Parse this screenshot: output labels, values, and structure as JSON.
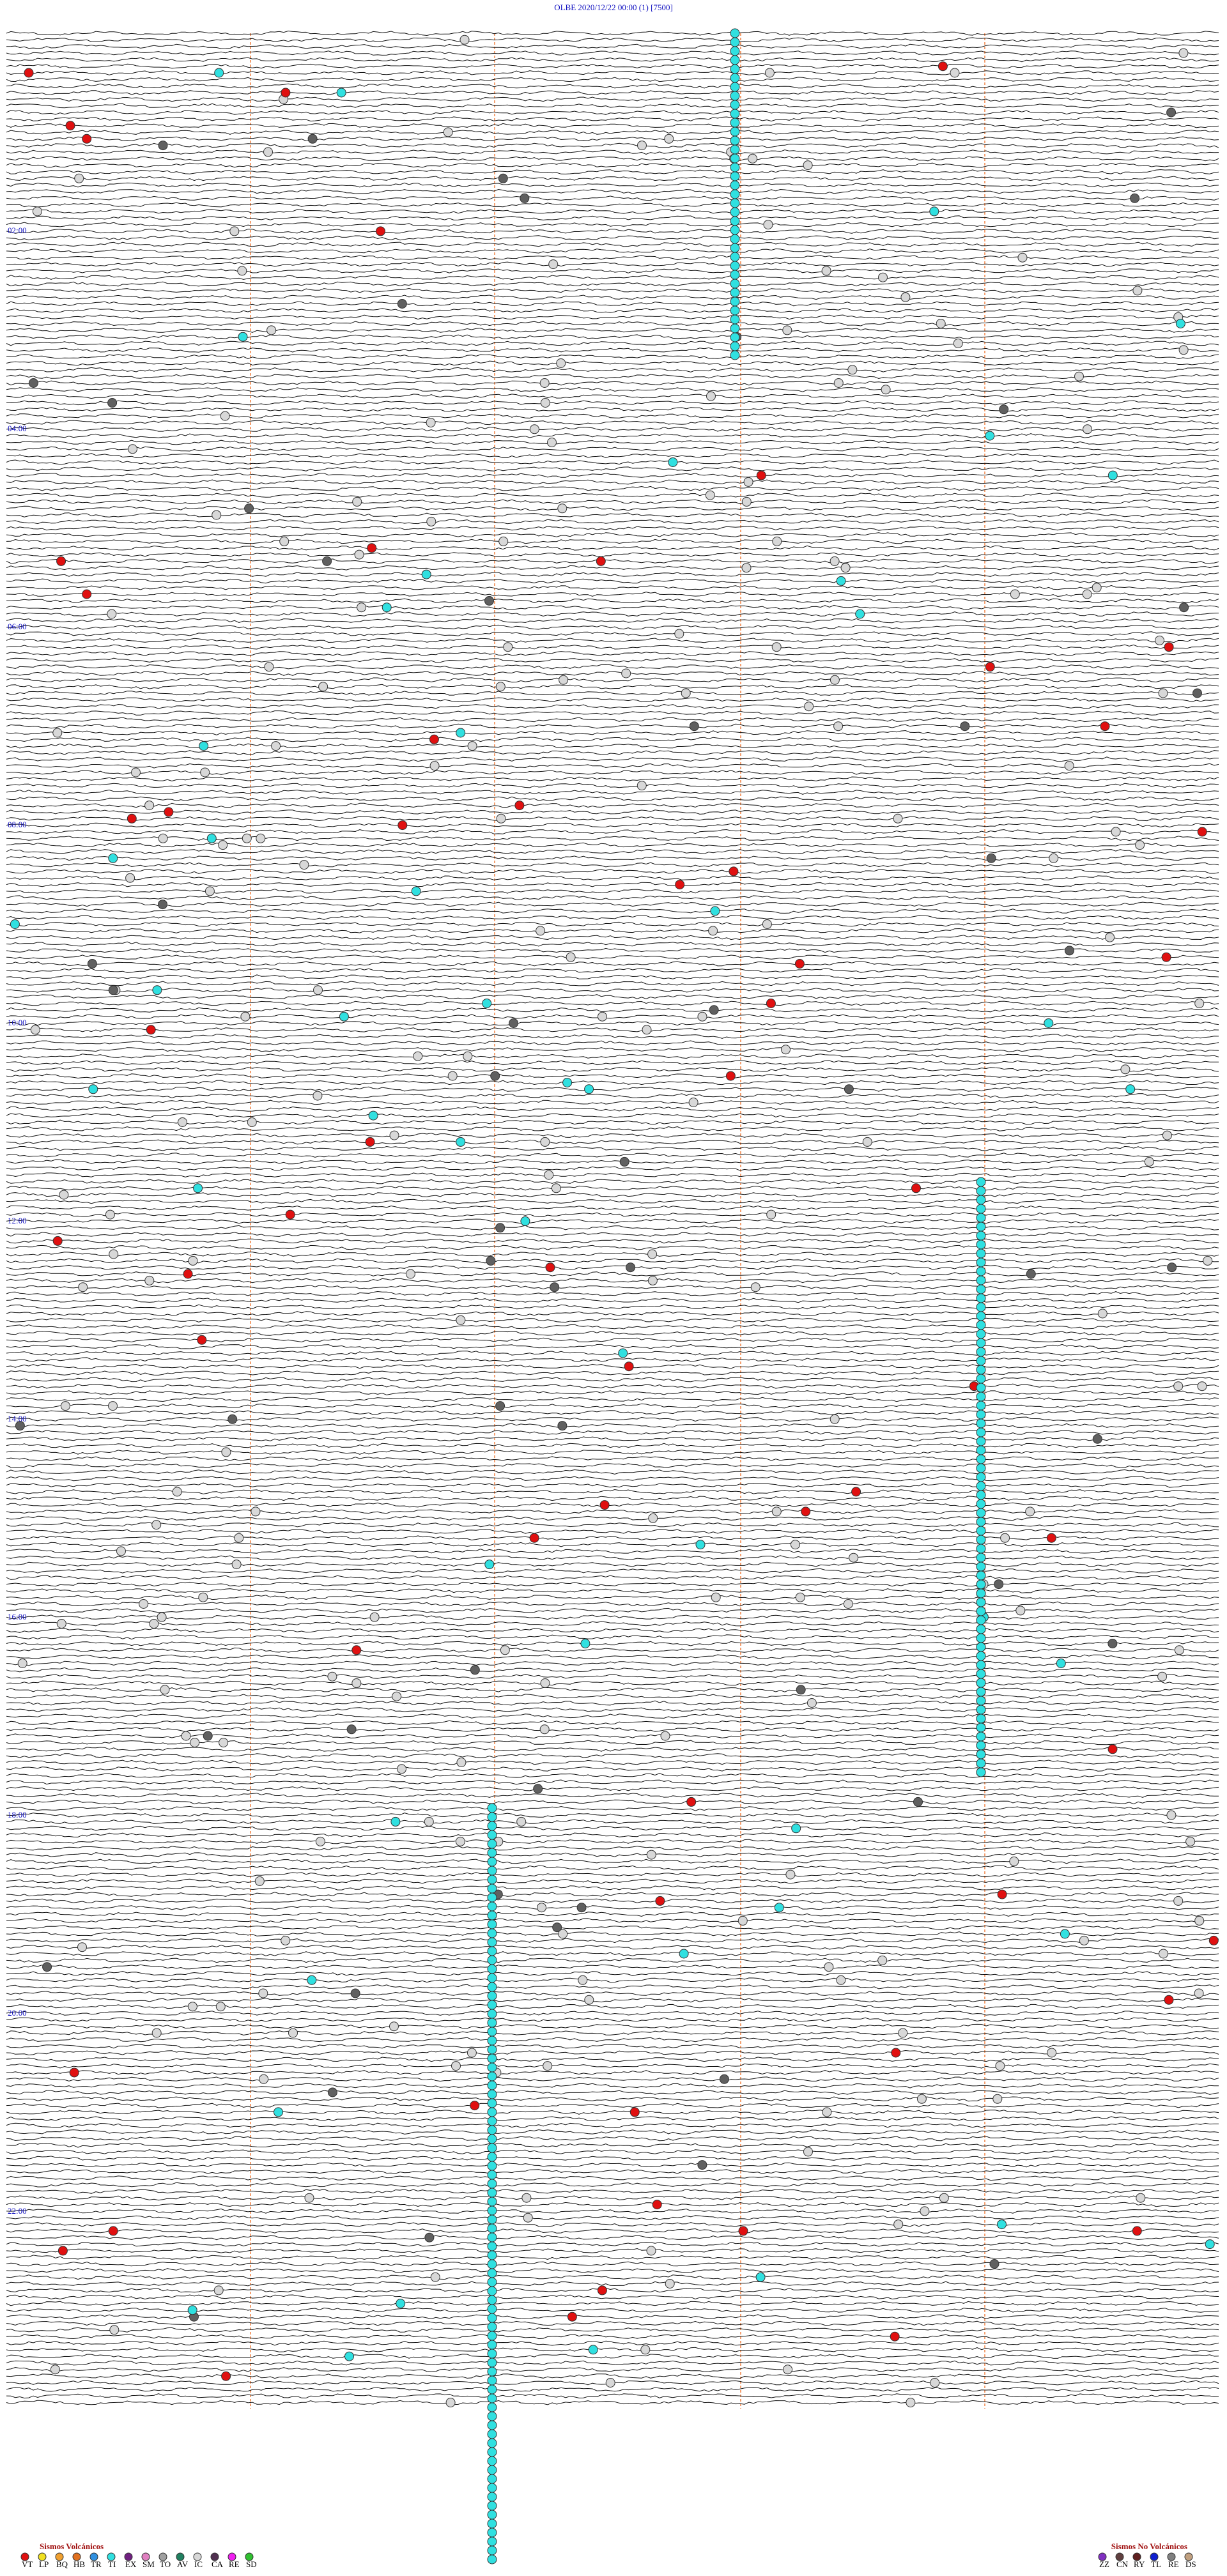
{
  "header": {
    "title": "OLBE    2020/12/22 00:00    (1)    [7500]"
  },
  "time_labels": [
    "02:00",
    "04:00",
    "06:00",
    "08:00",
    "10:00",
    "12:00",
    "14:00",
    "16:00",
    "18:00",
    "20:00",
    "22:00"
  ],
  "legend": {
    "volcanic": {
      "title": "Sismos Volcánicos",
      "items": [
        {
          "code": "VT",
          "color": "#e01010"
        },
        {
          "code": "LP",
          "color": "#f0e020"
        },
        {
          "code": "BQ",
          "color": "#f0a030"
        },
        {
          "code": "HB",
          "color": "#e07020"
        },
        {
          "code": "TR",
          "color": "#3090e0"
        },
        {
          "code": "TI",
          "color": "#30e0e0"
        },
        {
          "code": "EX",
          "color": "#702080"
        },
        {
          "code": "SM",
          "color": "#e080c0"
        },
        {
          "code": "TO",
          "color": "#a0a0a0"
        },
        {
          "code": "AV",
          "color": "#208060"
        },
        {
          "code": "IC",
          "color": "#d8d8d8"
        },
        {
          "code": "CA",
          "color": "#503050"
        },
        {
          "code": "RE",
          "color": "#f020f0"
        },
        {
          "code": "SD",
          "color": "#30c030"
        }
      ]
    },
    "non_volcanic": {
      "title": "Sismos No Volcánicos",
      "items": [
        {
          "code": "ZZ",
          "color": "#8030c0"
        },
        {
          "code": "CN",
          "color": "#604040"
        },
        {
          "code": "RY",
          "color": "#602020"
        },
        {
          "code": "TL",
          "color": "#1020d0"
        },
        {
          "code": "RE",
          "color": "#808080"
        },
        {
          "code": "DS",
          "color": "#c0a080"
        }
      ]
    }
  }
}
